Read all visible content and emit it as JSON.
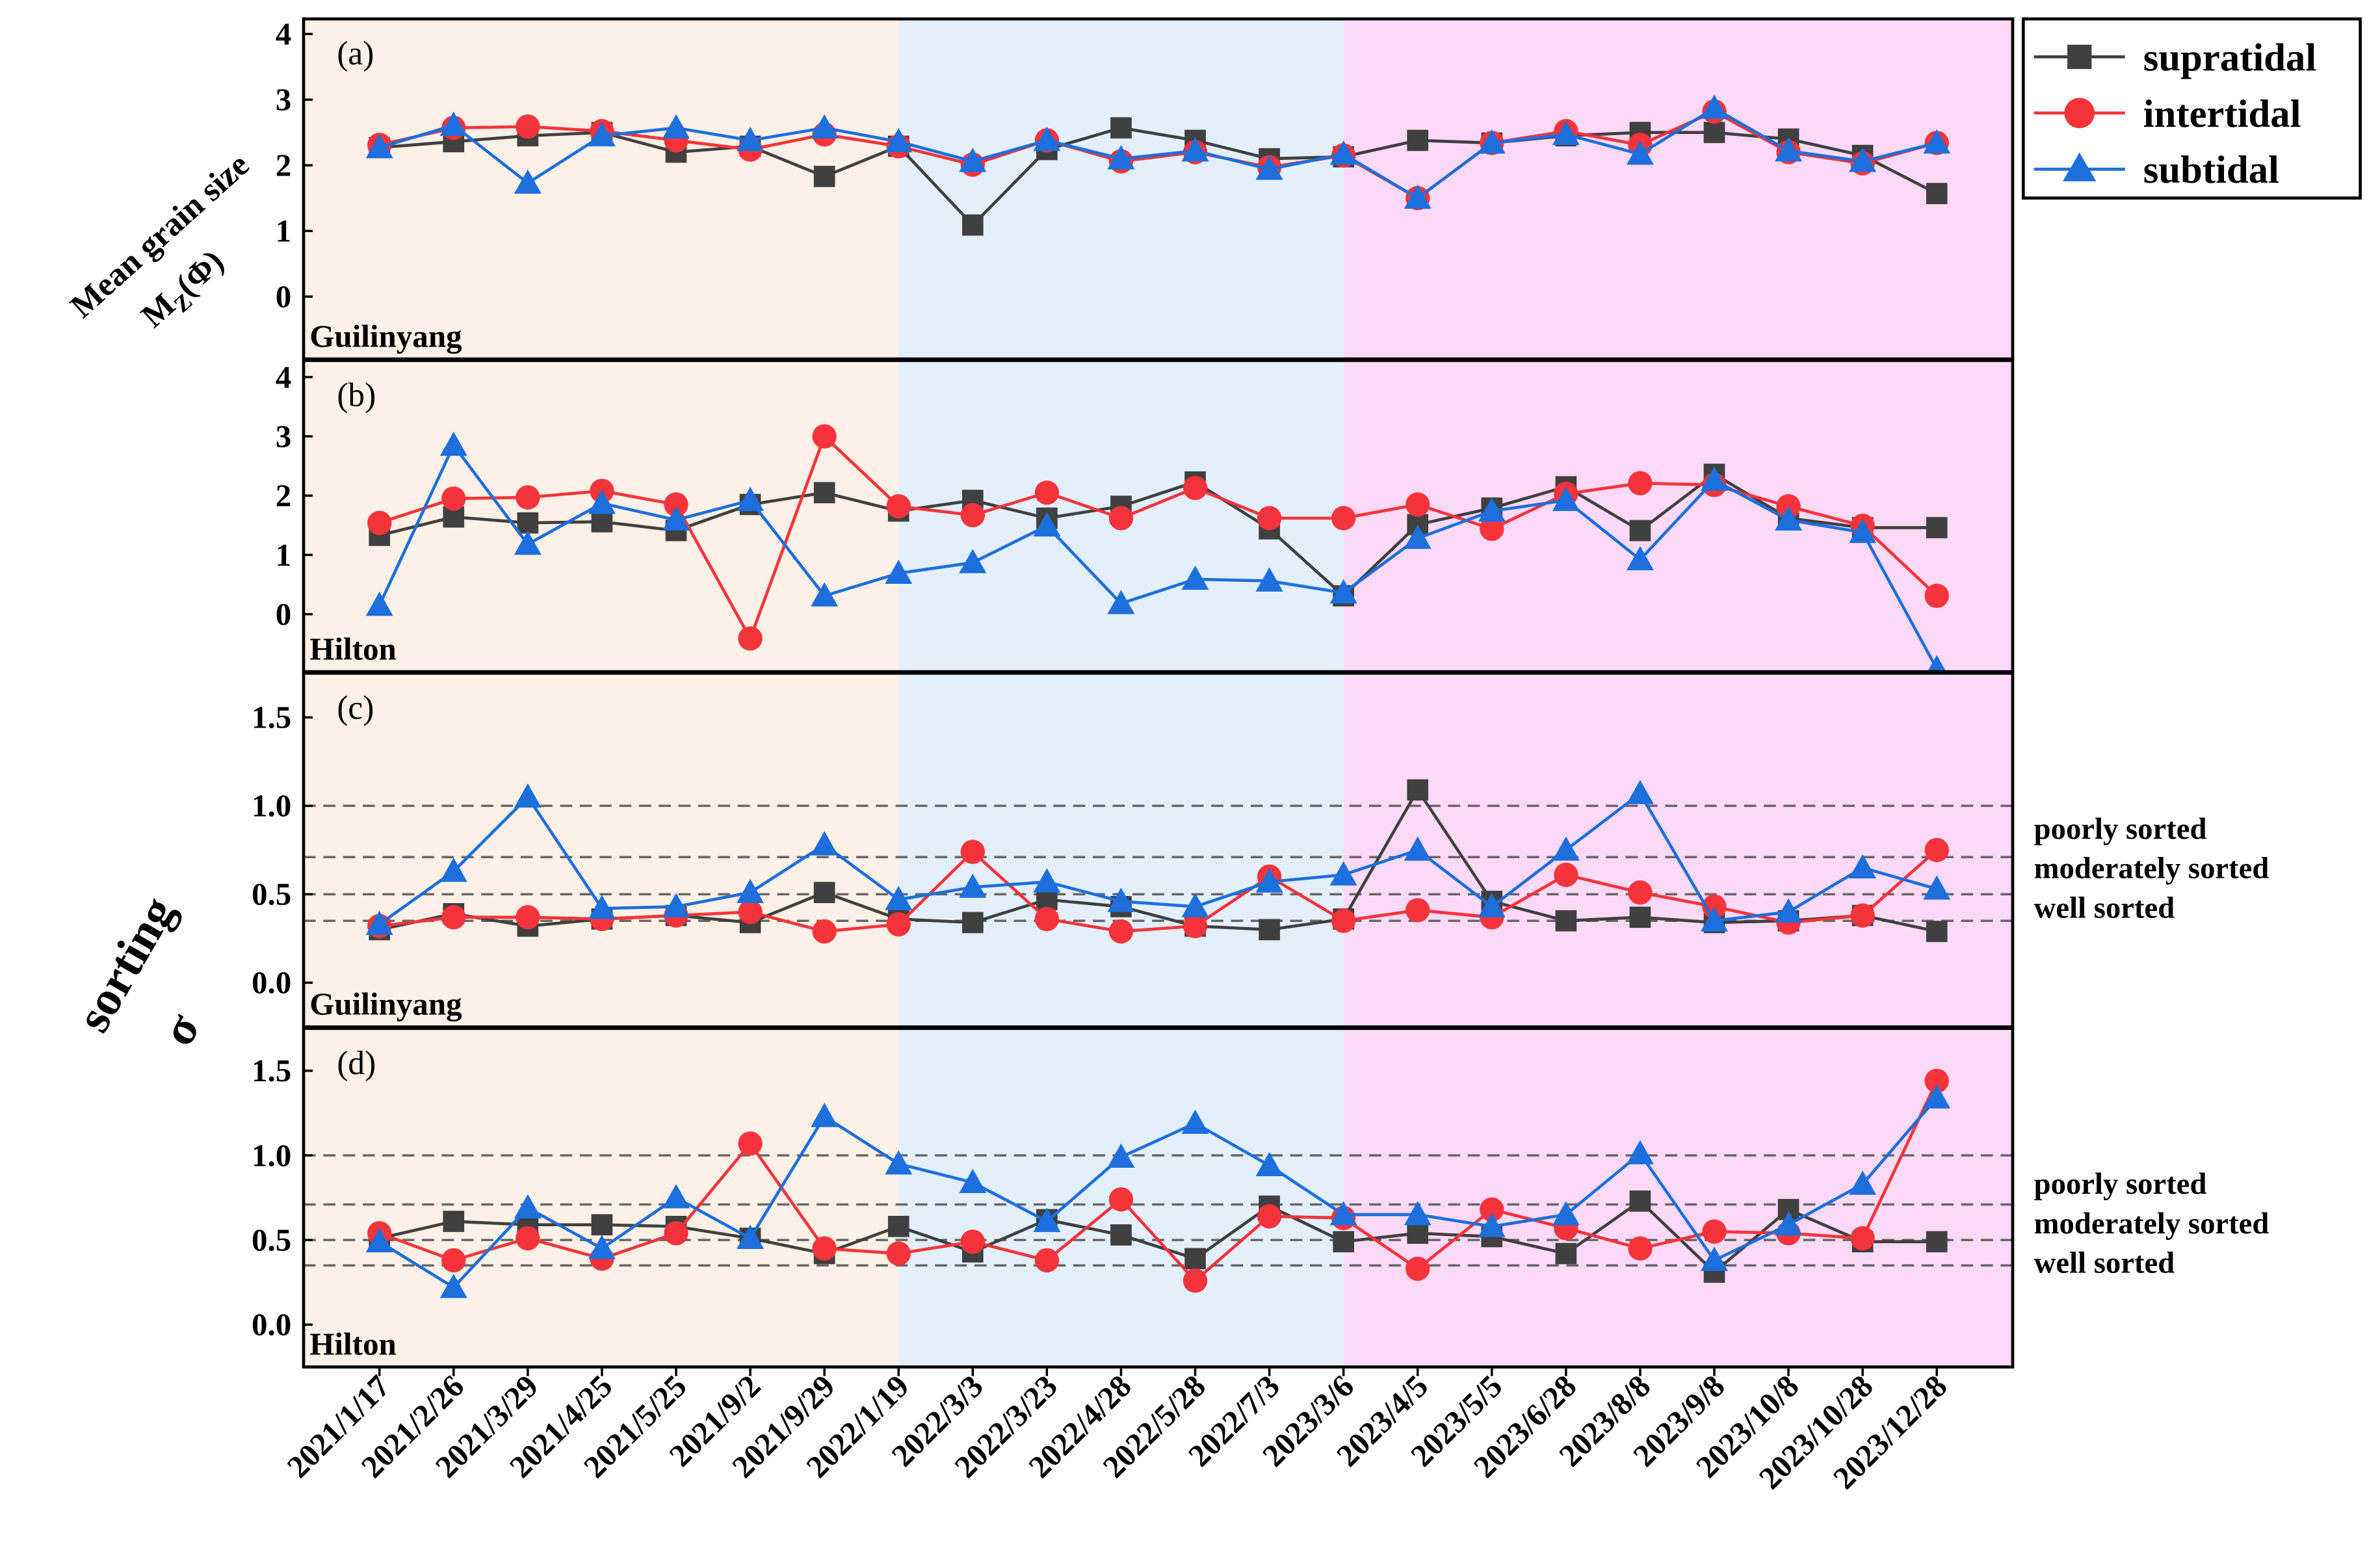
{
  "chart_data": [
    {
      "type": "line",
      "panel_label": "(a)",
      "site": "Guilinyang",
      "ylabel_line1": "Mean grain size",
      "ylabel_symbol": "M",
      "ylabel_subscript": "Z",
      "ylabel_unit": "(Φ)",
      "categories": [
        "2021/1/17",
        "2021/2/26",
        "2021/3/29",
        "2021/4/25",
        "2021/5/25",
        "2021/9/2",
        "2021/9/29",
        "2022/1/19",
        "2022/3/3",
        "2022/3/23",
        "2022/4/28",
        "2022/5/28",
        "2022/7/3",
        "2023/3/6",
        "2023/4/5",
        "2023/5/5",
        "2023/6/28",
        "2023/8/8",
        "2023/9/8",
        "2023/10/8",
        "2023/10/28",
        "2023/12/28"
      ],
      "ylim": [
        -0.95,
        4.23
      ],
      "yticks": [
        0,
        1,
        2,
        3,
        4
      ],
      "legend": "outside-top-right",
      "series": [
        {
          "name": "supratidal",
          "color": "#404040",
          "marker": "square",
          "values": [
            2.27,
            2.36,
            2.45,
            2.5,
            2.2,
            2.29,
            1.83,
            2.29,
            1.09,
            2.24,
            2.57,
            2.38,
            2.1,
            2.13,
            2.38,
            2.34,
            2.45,
            2.5,
            2.5,
            2.4,
            2.15,
            1.57
          ]
        },
        {
          "name": "intertidal",
          "color": "#f5333a",
          "marker": "circle",
          "values": [
            2.31,
            2.57,
            2.59,
            2.52,
            2.38,
            2.24,
            2.47,
            2.29,
            2.01,
            2.38,
            2.06,
            2.2,
            1.97,
            2.15,
            1.5,
            2.34,
            2.52,
            2.31,
            2.82,
            2.2,
            2.03,
            2.34
          ]
        },
        {
          "name": "subtidal",
          "color": "#1c6fdc",
          "marker": "triangle",
          "values": [
            2.27,
            2.61,
            1.73,
            2.45,
            2.57,
            2.38,
            2.57,
            2.36,
            2.06,
            2.38,
            2.1,
            2.22,
            1.94,
            2.17,
            1.5,
            2.34,
            2.47,
            2.17,
            2.87,
            2.22,
            2.06,
            2.34
          ]
        }
      ]
    },
    {
      "type": "line",
      "panel_label": "(b)",
      "site": "Hilton",
      "categories": [
        "2021/1/17",
        "2021/2/26",
        "2021/3/29",
        "2021/4/25",
        "2021/5/25",
        "2021/9/2",
        "2021/9/29",
        "2022/1/19",
        "2022/3/3",
        "2022/3/23",
        "2022/4/28",
        "2022/5/28",
        "2022/7/3",
        "2023/3/6",
        "2023/4/5",
        "2023/5/5",
        "2023/6/28",
        "2023/8/8",
        "2023/9/8",
        "2023/10/8",
        "2023/10/28",
        "2023/12/28"
      ],
      "ylim": [
        -0.97,
        4.28
      ],
      "yticks": [
        0,
        1,
        2,
        3,
        4
      ],
      "series": [
        {
          "name": "supratidal",
          "color": "#404040",
          "marker": "square",
          "values": [
            1.33,
            1.64,
            1.54,
            1.56,
            1.41,
            1.85,
            2.05,
            1.74,
            1.92,
            1.62,
            1.82,
            2.23,
            1.44,
            0.31,
            1.51,
            1.79,
            2.15,
            1.41,
            2.36,
            1.62,
            1.46,
            1.46
          ]
        },
        {
          "name": "intertidal",
          "color": "#f5333a",
          "marker": "circle",
          "values": [
            1.54,
            1.95,
            1.97,
            2.08,
            1.85,
            -0.41,
            3.0,
            1.82,
            1.67,
            2.05,
            1.62,
            2.13,
            1.62,
            1.62,
            1.85,
            1.44,
            2.03,
            2.21,
            2.18,
            1.82,
            1.49,
            0.31
          ]
        },
        {
          "name": "subtidal",
          "color": "#1c6fdc",
          "marker": "triangle",
          "values": [
            0.15,
            2.85,
            1.18,
            1.87,
            1.59,
            1.92,
            0.31,
            0.69,
            0.87,
            1.49,
            0.18,
            0.59,
            0.56,
            0.36,
            1.28,
            1.74,
            1.92,
            0.92,
            2.26,
            1.59,
            1.38,
            -0.92
          ]
        }
      ]
    },
    {
      "type": "line",
      "panel_label": "(c)",
      "site": "Guilinyang",
      "ylabel": "sorting",
      "ylabel_symbol": "σ",
      "categories": [
        "2021/1/17",
        "2021/2/26",
        "2021/3/29",
        "2021/4/25",
        "2021/5/25",
        "2021/9/2",
        "2021/9/29",
        "2022/1/19",
        "2022/3/3",
        "2022/3/23",
        "2022/4/28",
        "2022/5/28",
        "2022/7/3",
        "2023/3/6",
        "2023/4/5",
        "2023/5/5",
        "2023/6/28",
        "2023/8/8",
        "2023/9/8",
        "2023/10/8",
        "2023/10/28",
        "2023/12/28"
      ],
      "ylim": [
        -0.25,
        1.75
      ],
      "yticks": [
        {
          "value": 0,
          "label": "0.0"
        },
        {
          "value": 0.5,
          "label": "0.5"
        },
        {
          "value": 1,
          "label": "1.0"
        },
        {
          "value": 1.5,
          "label": "1.5"
        }
      ],
      "reference_lines": [
        0.35,
        0.5,
        0.71,
        1.0
      ],
      "annotations": [
        "poorly sorted",
        "moderately sorted",
        "well sorted"
      ],
      "series": [
        {
          "name": "supratidal",
          "color": "#404040",
          "marker": "square",
          "values": [
            0.3,
            0.39,
            0.32,
            0.36,
            0.38,
            0.34,
            0.51,
            0.36,
            0.34,
            0.47,
            0.43,
            0.32,
            0.3,
            0.36,
            1.09,
            0.46,
            0.35,
            0.37,
            0.34,
            0.35,
            0.38,
            0.29
          ]
        },
        {
          "name": "intertidal",
          "color": "#f5333a",
          "marker": "circle",
          "values": [
            0.32,
            0.37,
            0.37,
            0.36,
            0.38,
            0.4,
            0.29,
            0.33,
            0.74,
            0.36,
            0.29,
            0.32,
            0.6,
            0.35,
            0.41,
            0.37,
            0.61,
            0.51,
            0.43,
            0.34,
            0.38,
            0.75
          ]
        },
        {
          "name": "subtidal",
          "color": "#1c6fdc",
          "marker": "triangle",
          "values": [
            0.33,
            0.63,
            1.05,
            0.42,
            0.43,
            0.51,
            0.78,
            0.47,
            0.54,
            0.57,
            0.46,
            0.43,
            0.57,
            0.61,
            0.75,
            0.43,
            0.75,
            1.07,
            0.35,
            0.4,
            0.65,
            0.53
          ]
        }
      ]
    },
    {
      "type": "line",
      "panel_label": "(d)",
      "site": "Hilton",
      "categories": [
        "2021/1/17",
        "2021/2/26",
        "2021/3/29",
        "2021/4/25",
        "2021/5/25",
        "2021/9/2",
        "2021/9/29",
        "2022/1/19",
        "2022/3/3",
        "2022/3/23",
        "2022/4/28",
        "2022/5/28",
        "2022/7/3",
        "2023/3/6",
        "2023/4/5",
        "2023/5/5",
        "2023/6/28",
        "2023/8/8",
        "2023/9/8",
        "2023/10/8",
        "2023/10/28",
        "2023/12/28"
      ],
      "ylim": [
        -0.25,
        1.75
      ],
      "yticks": [
        {
          "value": 0,
          "label": "0.0"
        },
        {
          "value": 0.5,
          "label": "0.5"
        },
        {
          "value": 1,
          "label": "1.0"
        },
        {
          "value": 1.5,
          "label": "1.5"
        }
      ],
      "reference_lines": [
        0.35,
        0.5,
        0.71,
        1.0
      ],
      "annotations": [
        "poorly sorted",
        "moderately sorted",
        "well sorted"
      ],
      "series": [
        {
          "name": "supratidal",
          "color": "#404040",
          "marker": "square",
          "values": [
            0.51,
            0.61,
            0.59,
            0.59,
            0.58,
            0.51,
            0.42,
            0.58,
            0.43,
            0.62,
            0.53,
            0.39,
            0.7,
            0.49,
            0.54,
            0.52,
            0.42,
            0.73,
            0.31,
            0.68,
            0.49,
            0.49
          ]
        },
        {
          "name": "intertidal",
          "color": "#f5333a",
          "marker": "circle",
          "values": [
            0.54,
            0.38,
            0.51,
            0.39,
            0.54,
            1.07,
            0.45,
            0.42,
            0.49,
            0.38,
            0.74,
            0.26,
            0.64,
            0.63,
            0.33,
            0.68,
            0.57,
            0.45,
            0.55,
            0.54,
            0.51,
            1.44
          ]
        },
        {
          "name": "subtidal",
          "color": "#1c6fdc",
          "marker": "triangle",
          "values": [
            0.49,
            0.22,
            0.69,
            0.45,
            0.75,
            0.51,
            1.23,
            0.95,
            0.84,
            0.61,
            0.99,
            1.19,
            0.94,
            0.65,
            0.65,
            0.58,
            0.65,
            1.01,
            0.38,
            0.59,
            0.83,
            1.34
          ]
        }
      ]
    }
  ]
}
